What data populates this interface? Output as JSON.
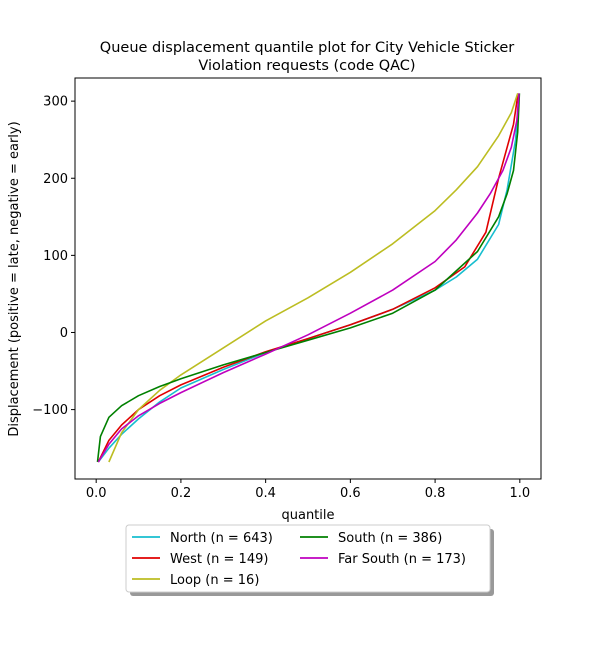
{
  "chart_data": {
    "type": "line",
    "title_line1": "Queue displacement quantile plot for City Vehicle Sticker",
    "title_line2": "Violation  requests (code QAC)",
    "xlabel": "quantile",
    "ylabel": "Displacement (positive = late, negative = early)",
    "xlim": [
      -0.05,
      1.05
    ],
    "ylim": [
      -190,
      330
    ],
    "xticks": [
      0.0,
      0.2,
      0.4,
      0.6,
      0.8,
      1.0
    ],
    "xtick_labels": [
      "0.0",
      "0.2",
      "0.4",
      "0.6",
      "0.8",
      "1.0"
    ],
    "yticks": [
      -100,
      0,
      100,
      200,
      300
    ],
    "ytick_labels": [
      "−100",
      "0",
      "100",
      "200",
      "300"
    ],
    "grid": false,
    "legend_placement": "below",
    "series": [
      {
        "name": "North (n = 643)",
        "color": "#17becf",
        "x": [
          0.005,
          0.03,
          0.06,
          0.1,
          0.15,
          0.2,
          0.3,
          0.4,
          0.5,
          0.6,
          0.7,
          0.8,
          0.85,
          0.9,
          0.95,
          0.97,
          0.99,
          0.998
        ],
        "y": [
          -168,
          -150,
          -132,
          -112,
          -90,
          -72,
          -48,
          -26,
          -8,
          10,
          30,
          55,
          72,
          95,
          140,
          185,
          250,
          310
        ]
      },
      {
        "name": "West (n = 149)",
        "color": "#e00000",
        "x": [
          0.005,
          0.03,
          0.06,
          0.1,
          0.15,
          0.2,
          0.3,
          0.4,
          0.5,
          0.6,
          0.7,
          0.8,
          0.87,
          0.92,
          0.95,
          0.97,
          0.985,
          0.996
        ],
        "y": [
          -168,
          -140,
          -120,
          -100,
          -82,
          -68,
          -45,
          -25,
          -8,
          10,
          30,
          58,
          85,
          130,
          200,
          240,
          270,
          310
        ]
      },
      {
        "name": "Loop (n = 16)",
        "color": "#bcbd22",
        "x": [
          0.03,
          0.06,
          0.1,
          0.15,
          0.2,
          0.3,
          0.4,
          0.5,
          0.6,
          0.7,
          0.8,
          0.85,
          0.9,
          0.95,
          0.98,
          0.995
        ],
        "y": [
          -168,
          -130,
          -100,
          -75,
          -55,
          -20,
          15,
          45,
          78,
          115,
          158,
          185,
          215,
          255,
          285,
          310
        ]
      },
      {
        "name": "South (n = 386)",
        "color": "#008000",
        "x": [
          0.003,
          0.01,
          0.03,
          0.06,
          0.1,
          0.15,
          0.2,
          0.3,
          0.4,
          0.5,
          0.6,
          0.7,
          0.8,
          0.9,
          0.95,
          0.97,
          0.985,
          0.995,
          0.999
        ],
        "y": [
          -168,
          -135,
          -110,
          -95,
          -82,
          -70,
          -60,
          -42,
          -26,
          -10,
          6,
          25,
          55,
          105,
          150,
          180,
          210,
          260,
          310
        ]
      },
      {
        "name": "Far South (n = 173)",
        "color": "#bf00bf",
        "x": [
          0.005,
          0.03,
          0.06,
          0.1,
          0.15,
          0.2,
          0.3,
          0.4,
          0.5,
          0.6,
          0.7,
          0.8,
          0.85,
          0.9,
          0.93,
          0.96,
          0.98,
          0.993,
          0.998
        ],
        "y": [
          -168,
          -145,
          -125,
          -108,
          -92,
          -78,
          -52,
          -28,
          -3,
          25,
          55,
          92,
          120,
          155,
          180,
          210,
          240,
          275,
          310
        ]
      }
    ],
    "legend_order": [
      0,
      3,
      1,
      4,
      2
    ]
  }
}
